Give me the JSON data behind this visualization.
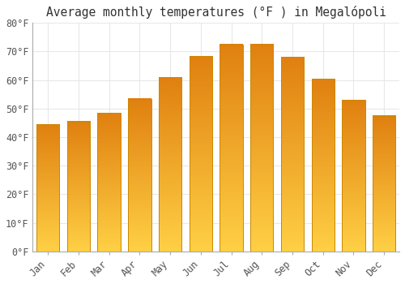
{
  "title": "Average monthly temperatures (°F ) in Megalópoli",
  "months": [
    "Jan",
    "Feb",
    "Mar",
    "Apr",
    "May",
    "Jun",
    "Jul",
    "Aug",
    "Sep",
    "Oct",
    "Nov",
    "Dec"
  ],
  "values": [
    44.5,
    45.5,
    48.5,
    53.5,
    61.0,
    68.5,
    72.5,
    72.5,
    68.0,
    60.5,
    53.0,
    47.5
  ],
  "bar_color_top": "#FFD040",
  "bar_color_bottom": "#E88010",
  "bar_edge_color": "#CC8800",
  "background_color": "#FFFFFF",
  "plot_bg_color": "#FFFFFF",
  "grid_color": "#E8E8E8",
  "ylim": [
    0,
    80
  ],
  "yticks": [
    0,
    10,
    20,
    30,
    40,
    50,
    60,
    70,
    80
  ],
  "title_fontsize": 10.5,
  "tick_fontsize": 8.5,
  "bar_width": 0.75
}
